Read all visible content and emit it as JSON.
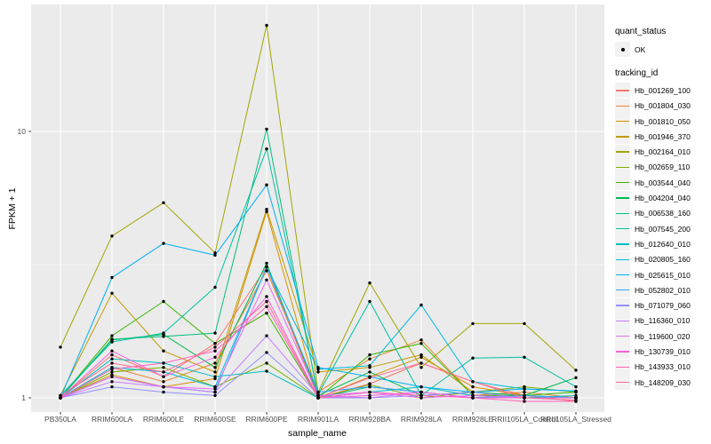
{
  "chart_data": {
    "type": "line",
    "title": "",
    "xlabel": "sample_name",
    "ylabel": "FPKM + 1",
    "y_scale": "log10",
    "y_ticks": [
      "1",
      "10"
    ],
    "y_tick_values": [
      1,
      10
    ],
    "y_minor_values": [
      3.162
    ],
    "ylim_approx": [
      0.95,
      28
    ],
    "grid": true,
    "legend_position": "right",
    "panel_bg": "#EBEBEB",
    "grid_color": "#FFFFFF",
    "point_color": "#000000",
    "categories": [
      "PB350LA",
      "RRIM600LA",
      "RRIM600LE",
      "RRIM600SE",
      "RRIM600PE",
      "RRIM901LA",
      "RRIM928BA",
      "RRIM928LA",
      "RRIM928LE",
      "RRII105LA_Control",
      "RRII105LA_Stressed"
    ],
    "legend": {
      "quant_status_title": "quant_status",
      "quant_status_items": [
        "OK"
      ],
      "tracking_id_title": "tracking_id"
    },
    "series": [
      {
        "name": "Hb_001269_100",
        "color": "#F8766D",
        "values": [
          1.0,
          1.45,
          1.2,
          1.6,
          3.1,
          1.0,
          1.13,
          1.35,
          1.15,
          1.02,
          0.97
        ]
      },
      {
        "name": "Hb_001804_030",
        "color": "#EA8331",
        "values": [
          1.0,
          1.3,
          1.15,
          1.35,
          3.0,
          1.05,
          1.4,
          1.65,
          1.02,
          1.05,
          1.0
        ]
      },
      {
        "name": "Hb_001810_050",
        "color": "#D89000",
        "values": [
          1.0,
          1.22,
          1.1,
          1.18,
          5.0,
          1.0,
          1.2,
          1.42,
          1.1,
          1.02,
          1.0
        ]
      },
      {
        "name": "Hb_001946_370",
        "color": "#C09B00",
        "values": [
          1.02,
          2.47,
          1.5,
          1.25,
          5.1,
          1.25,
          1.3,
          1.45,
          1.05,
          1.0,
          1.0
        ]
      },
      {
        "name": "Hb_002164_010",
        "color": "#A3A500",
        "values": [
          1.55,
          4.05,
          5.4,
          3.5,
          25.0,
          1.05,
          2.7,
          1.3,
          1.9,
          1.9,
          1.27
        ]
      },
      {
        "name": "Hb_002659_110",
        "color": "#7CAE00",
        "values": [
          1.0,
          1.25,
          1.3,
          1.1,
          1.35,
          1.0,
          1.12,
          1.0,
          1.05,
          1.1,
          1.05
        ]
      },
      {
        "name": "Hb_003544_040",
        "color": "#39B600",
        "values": [
          1.0,
          1.71,
          2.3,
          1.6,
          2.08,
          1.0,
          1.45,
          1.6,
          1.02,
          1.02,
          1.05
        ]
      },
      {
        "name": "Hb_004204_040",
        "color": "#00BB4E",
        "values": [
          1.0,
          1.65,
          1.73,
          1.3,
          3.2,
          1.02,
          1.25,
          1.02,
          1.05,
          1.02,
          1.19
        ]
      },
      {
        "name": "Hb_006538_160",
        "color": "#00BF7D",
        "values": [
          1.0,
          1.66,
          1.7,
          1.75,
          10.2,
          1.0,
          1.1,
          1.05,
          1.0,
          1.02,
          1.0
        ]
      },
      {
        "name": "Hb_007545_200",
        "color": "#00C1A3",
        "values": [
          1.02,
          1.62,
          1.75,
          2.6,
          8.6,
          1.03,
          2.3,
          1.02,
          1.41,
          1.42,
          1.1
        ]
      },
      {
        "name": "Hb_012640_010",
        "color": "#00BFC4",
        "values": [
          1.0,
          1.4,
          1.35,
          1.2,
          1.26,
          1.0,
          1.05,
          1.1,
          1.02,
          1.0,
          1.02
        ]
      },
      {
        "name": "Hb_020805_160",
        "color": "#00BAE0",
        "values": [
          1.0,
          1.3,
          1.25,
          1.1,
          3.1,
          1.28,
          1.32,
          2.23,
          1.15,
          1.08,
          1.06
        ]
      },
      {
        "name": "Hb_025615_010",
        "color": "#00B0F6",
        "values": [
          1.0,
          2.83,
          3.8,
          3.43,
          6.3,
          1.3,
          1.2,
          1.1,
          1.05,
          1.08,
          1.06
        ]
      },
      {
        "name": "Hb_052802_010",
        "color": "#35A2FF",
        "values": [
          1.0,
          1.2,
          1.1,
          1.05,
          3.1,
          1.05,
          1.1,
          1.05,
          1.0,
          1.02,
          1.0
        ]
      },
      {
        "name": "Hb_071079_060",
        "color": "#9590FF",
        "values": [
          1.0,
          1.1,
          1.05,
          1.02,
          1.48,
          1.0,
          1.0,
          1.02,
          1.05,
          1.0,
          1.0
        ]
      },
      {
        "name": "Hb_116360_010",
        "color": "#C77CFF",
        "values": [
          1.0,
          1.15,
          1.1,
          1.05,
          1.71,
          1.02,
          1.0,
          1.05,
          1.0,
          1.0,
          1.0
        ]
      },
      {
        "name": "Hb_119600_020",
        "color": "#E76BF3",
        "values": [
          1.0,
          1.2,
          1.1,
          1.08,
          2.77,
          1.02,
          1.05,
          1.0,
          1.02,
          1.0,
          1.0
        ]
      },
      {
        "name": "Hb_130739_010",
        "color": "#FA62DB",
        "values": [
          1.0,
          1.5,
          1.2,
          1.42,
          2.4,
          1.0,
          1.02,
          1.05,
          1.0,
          1.0,
          1.0
        ]
      },
      {
        "name": "Hb_143933_010",
        "color": "#FF62BC",
        "values": [
          1.0,
          1.28,
          1.35,
          1.5,
          2.2,
          1.0,
          1.05,
          1.02,
          1.0,
          0.97,
          0.97
        ]
      },
      {
        "name": "Hb_148209_030",
        "color": "#FF6A98",
        "values": [
          1.02,
          1.35,
          1.25,
          1.55,
          2.3,
          1.0,
          1.19,
          1.35,
          1.15,
          1.0,
          0.98
        ]
      }
    ]
  }
}
